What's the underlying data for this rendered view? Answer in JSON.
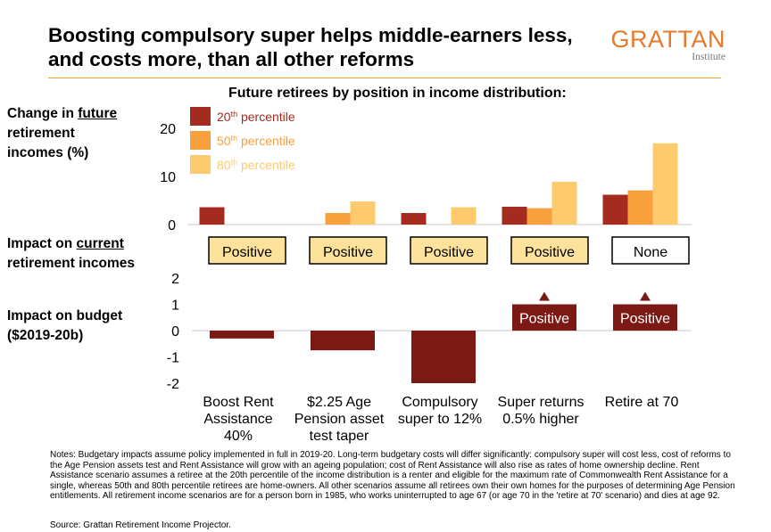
{
  "header": {
    "title": "Boosting compulsory super helps middle-earners less, and costs more, than all other reforms",
    "logo_word": "GRATTAN",
    "logo_sub": "Institute"
  },
  "subtitle": "Future retirees by position in income distribution:",
  "labels": {
    "future_prefix": "Change in ",
    "future_underlined": "future",
    "future_rest": "retirement incomes (%)",
    "current_prefix": "Impact on ",
    "current_underlined": "current",
    "current_rest": "retirement incomes",
    "budget_line1": "Impact on budget",
    "budget_line2": "($2019-20b)"
  },
  "notes": "Notes: Budgetary impacts assume policy implemented in full in 2019-20. Long-term budgetary costs will differ significantly: compulsory super will cost less, cost of reforms to the Age Pension assets test and Rent Assistance will grow with an ageing population; cost of Rent Assistance will also rise as rates of home ownership decline. Rent Assistance scenario assumes a retiree at the 20th percentile of the income distribution is a renter and eligible for the maximum rate of Commonwealth Rent Assistance for a single, whereas 50th and 80th percentile retirees are home-owners. All other scenarios assume all retirees own their own homes for the purposes of determining Age Pension entitlements. All retirement income scenarios are for a person born in 1985, who works uninterrupted to age 67 (or age 70 in the 'retire at 70' scenario) and dies at age 92.",
  "source": "Source: Grattan Retirement Income Projector.",
  "colors": {
    "p20": "#A52A1F",
    "p50": "#F7A03C",
    "p80": "#FDCB6E",
    "budget": "#7B1A14",
    "positive_box": "#FCE29A",
    "accent": "#E8782A"
  },
  "chart_data": [
    {
      "type": "bar",
      "categories": [
        "Boost Rent Assistance 40%",
        "$2.25 Age Pension asset test taper",
        "Compulsory super to 12%",
        "Super returns 0.5% higher",
        "Retire at 70"
      ],
      "category_labels": [
        [
          "Boost Rent",
          "Assistance",
          "40%"
        ],
        [
          "$2.25 Age",
          "Pension asset",
          "test taper"
        ],
        [
          "Compulsory",
          "super to 12%"
        ],
        [
          "Super returns",
          "0.5% higher"
        ],
        [
          "Retire at 70"
        ]
      ],
      "series": [
        {
          "name": "20th percentile",
          "name_base": "20",
          "name_sup": "th",
          "name_rest": " percentile",
          "values": [
            3.6,
            0,
            2.4,
            3.7,
            6.2
          ]
        },
        {
          "name": "50th percentile",
          "name_base": "50",
          "name_sup": "th",
          "name_rest": " percentile",
          "values": [
            0,
            2.4,
            0,
            3.4,
            7.1
          ]
        },
        {
          "name": "80th percentile",
          "name_base": "80",
          "name_sup": "th",
          "name_rest": " percentile",
          "values": [
            0,
            4.8,
            3.6,
            8.9,
            16.9
          ]
        }
      ],
      "ylim": [
        0,
        20
      ],
      "yticks": [
        "0",
        "10",
        "20"
      ],
      "legend": "top-left"
    },
    {
      "type": "table",
      "categories": [
        "Boost Rent Assistance 40%",
        "$2.25 Age Pension asset test taper",
        "Compulsory super to 12%",
        "Super returns 0.5% higher",
        "Retire at 70"
      ],
      "values": [
        "Positive",
        "Positive",
        "Positive",
        "Positive",
        "None"
      ]
    },
    {
      "type": "bar",
      "categories": [
        "Boost Rent Assistance 40%",
        "$2.25 Age Pension asset test taper",
        "Compulsory super to 12%",
        "Super returns 0.5% higher",
        "Retire at 70"
      ],
      "values": [
        -0.3,
        -0.75,
        -2.0,
        1.0,
        1.0
      ],
      "bar_labels": [
        "",
        "",
        "",
        "Positive",
        "Positive"
      ],
      "ylim": [
        -2,
        2
      ],
      "yticks": [
        "2",
        "1",
        "0",
        "-1",
        "-2"
      ]
    }
  ]
}
